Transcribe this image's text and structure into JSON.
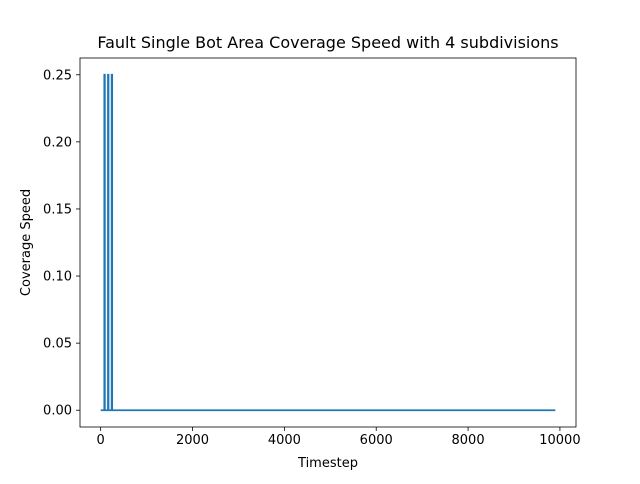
{
  "chart_data": {
    "type": "line",
    "title": "Fault Single Bot Area Coverage Speed with 4 subdivisions",
    "xlabel": "Timestep",
    "ylabel": "Coverage Speed",
    "xlim": [
      -450,
      10350
    ],
    "ylim": [
      -0.0125,
      0.2625
    ],
    "xticks": [
      0,
      2000,
      4000,
      6000,
      8000,
      10000
    ],
    "xtick_labels": [
      "0",
      "2000",
      "4000",
      "6000",
      "8000",
      "10000"
    ],
    "yticks": [
      0.0,
      0.05,
      0.1,
      0.15,
      0.2,
      0.25
    ],
    "ytick_labels": [
      "0.00",
      "0.05",
      "0.10",
      "0.15",
      "0.20",
      "0.25"
    ],
    "grid": false,
    "legend": false,
    "series": [
      {
        "color": "#1f77b4",
        "x": [
          0,
          80,
          80,
          90,
          90,
          160,
          160,
          170,
          170,
          240,
          240,
          250,
          250,
          9900
        ],
        "y": [
          0,
          0,
          0.25,
          0.25,
          0,
          0,
          0.25,
          0.25,
          0,
          0,
          0.25,
          0.25,
          0,
          0
        ]
      }
    ]
  }
}
